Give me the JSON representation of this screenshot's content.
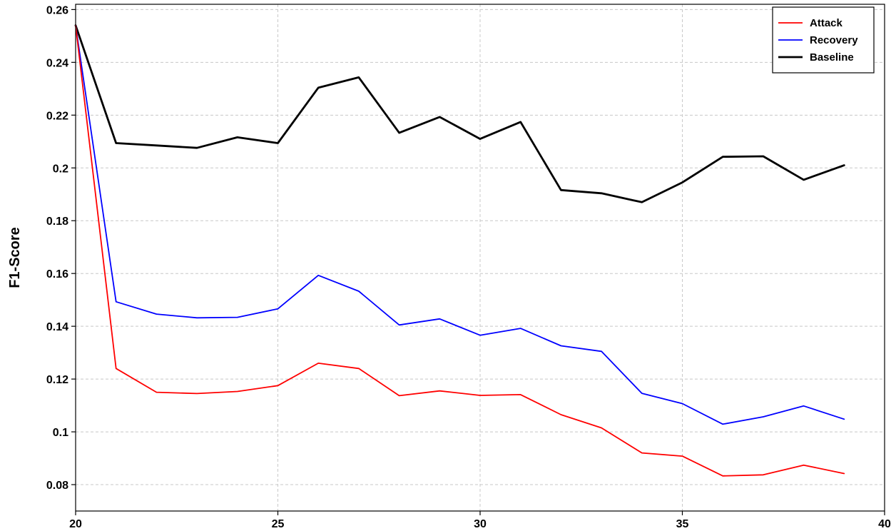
{
  "chart_data": {
    "type": "line",
    "title": "",
    "xlabel": "",
    "ylabel": "F1-Score",
    "xlim": [
      20,
      40
    ],
    "ylim": [
      0.07,
      0.262
    ],
    "x_ticks": [
      20,
      25,
      30,
      35,
      40
    ],
    "x_tick_labels": [
      "20",
      "25",
      "30",
      "35",
      "40"
    ],
    "y_ticks": [
      0.08,
      0.1,
      0.12,
      0.14,
      0.16,
      0.18,
      0.2,
      0.22,
      0.24,
      0.26
    ],
    "y_tick_labels": [
      "0.08",
      "0.1",
      "0.12",
      "0.14",
      "0.16",
      "0.18",
      "0.2",
      "0.22",
      "0.24",
      "0.26"
    ],
    "grid": true,
    "legend_position": "top-right",
    "x": [
      20,
      21,
      22,
      23,
      24,
      25,
      26,
      27,
      28,
      29,
      30,
      31,
      32,
      33,
      34,
      35,
      36,
      37,
      38,
      39
    ],
    "series": [
      {
        "name": "Attack",
        "color": "#ff0000",
        "values": [
          0.254,
          0.124,
          0.115,
          0.1145,
          0.1153,
          0.1175,
          0.126,
          0.124,
          0.1137,
          0.1155,
          0.1138,
          0.1141,
          0.1065,
          0.1015,
          0.092,
          0.0908,
          0.0833,
          0.0837,
          0.0874,
          0.0842
        ]
      },
      {
        "name": "Recovery",
        "color": "#0000ff",
        "values": [
          0.254,
          0.1493,
          0.1446,
          0.1432,
          0.1434,
          0.1466,
          0.1593,
          0.1533,
          0.1405,
          0.1428,
          0.1366,
          0.1392,
          0.1326,
          0.1305,
          0.1146,
          0.1107,
          0.1029,
          0.1057,
          0.1098,
          0.1048
        ]
      },
      {
        "name": "Baseline",
        "color": "#000000",
        "values": [
          0.254,
          0.2094,
          0.2085,
          0.2076,
          0.2116,
          0.2094,
          0.2304,
          0.2343,
          0.2133,
          0.2193,
          0.211,
          0.2174,
          0.1916,
          0.1904,
          0.187,
          0.1945,
          0.2042,
          0.2044,
          0.1955,
          0.201
        ]
      }
    ]
  }
}
